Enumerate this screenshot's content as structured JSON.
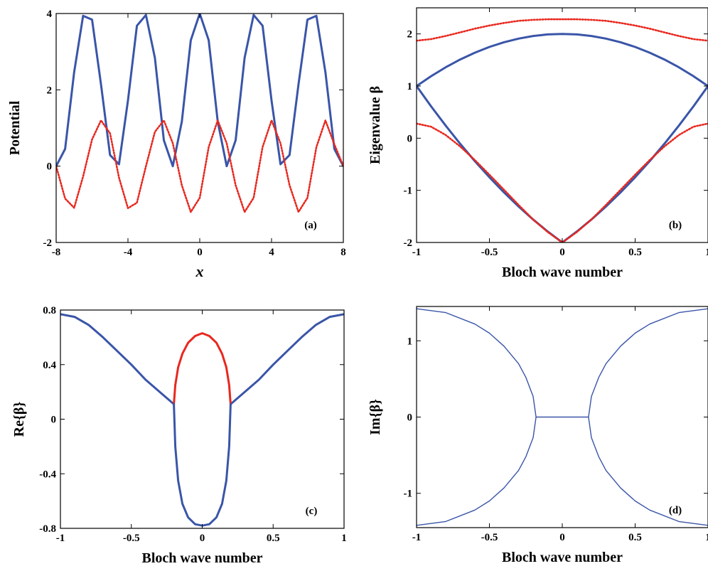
{
  "colors": {
    "blue": "#3a55a8",
    "red": "#e8281e",
    "axis": "#000000"
  },
  "chart_data": [
    {
      "type": "line",
      "panel_tag": "(a)",
      "xlabel": "x",
      "ylabel": "Potential",
      "xlim": [
        -8,
        8
      ],
      "ylim": [
        -2,
        4
      ],
      "xticks": [
        "-8",
        "-4",
        "0",
        "4",
        "8"
      ],
      "yticks": [
        "-2",
        "0",
        "2",
        "4"
      ],
      "grid": false,
      "series": [
        {
          "color": "blue",
          "style": "solid",
          "x": [
            -8,
            -7.5,
            -7,
            -6.5,
            -6,
            -5.5,
            -5,
            -4.5,
            -4,
            -3.5,
            -3,
            -2.5,
            -2,
            -1.5,
            -1,
            -0.5,
            0,
            0.5,
            1,
            1.5,
            2,
            2.5,
            3,
            3.5,
            4,
            4.5,
            5,
            5.5,
            6,
            6.5,
            7,
            7.5,
            8
          ],
          "y": [
            0.0,
            0.45,
            2.46,
            3.94,
            3.84,
            2.14,
            0.29,
            0.05,
            1.72,
            3.68,
            3.96,
            2.84,
            0.68,
            0.0,
            1.17,
            3.3,
            4.0,
            3.3,
            1.17,
            0.0,
            0.68,
            2.84,
            3.96,
            3.68,
            1.72,
            0.05,
            0.29,
            2.14,
            3.84,
            3.94,
            2.46,
            0.45,
            0.0
          ]
        },
        {
          "color": "red",
          "style": "dotted",
          "x": [
            -8,
            -7.5,
            -7,
            -6.5,
            -6,
            -5.5,
            -5,
            -4.5,
            -4,
            -3.5,
            -3,
            -2.5,
            -2,
            -1.5,
            -1,
            -0.5,
            0,
            0.5,
            1,
            1.5,
            2,
            2.5,
            3,
            3.5,
            4,
            4.5,
            5,
            5.5,
            6,
            6.5,
            7,
            7.5,
            8
          ],
          "y": [
            0.0,
            -0.85,
            -1.09,
            -0.27,
            0.7,
            1.2,
            0.86,
            -0.3,
            -1.1,
            -0.96,
            0.0,
            0.9,
            1.2,
            0.6,
            -0.5,
            -1.2,
            -0.83,
            0.5,
            1.2,
            0.6,
            -0.5,
            -1.2,
            -0.83,
            0.5,
            1.2,
            0.6,
            -0.5,
            -1.2,
            -0.83,
            0.5,
            1.2,
            0.57,
            0.0
          ]
        }
      ]
    },
    {
      "type": "line",
      "panel_tag": "(b)",
      "xlabel": "Bloch wave number",
      "ylabel": "Eigenvalue β",
      "xlim": [
        -1,
        1
      ],
      "ylim": [
        -2,
        2.5
      ],
      "xticks": [
        "-1",
        "-0.5",
        "0",
        "0.5",
        "1"
      ],
      "yticks": [
        "-2",
        "-1",
        "0",
        "1",
        "2"
      ],
      "grid": false,
      "series": [
        {
          "color": "blue",
          "style": "solid",
          "x": [
            -1,
            -0.9,
            -0.8,
            -0.7,
            -0.6,
            -0.5,
            -0.4,
            -0.3,
            -0.2,
            -0.1,
            0,
            0.1,
            0.2,
            0.3,
            0.4,
            0.5,
            0.6,
            0.7,
            0.8,
            0.9,
            1
          ],
          "y": [
            1.0,
            1.19,
            1.36,
            1.51,
            1.64,
            1.75,
            1.84,
            1.91,
            1.96,
            1.99,
            2.0,
            1.99,
            1.96,
            1.91,
            1.84,
            1.75,
            1.64,
            1.51,
            1.36,
            1.19,
            1.0
          ]
        },
        {
          "color": "blue",
          "style": "solid",
          "x": [
            -1,
            -0.9,
            -0.8,
            -0.7,
            -0.6,
            -0.5,
            -0.4,
            -0.3,
            -0.2,
            -0.1,
            0,
            0.1,
            0.2,
            0.3,
            0.4,
            0.5,
            0.6,
            0.7,
            0.8,
            0.9,
            1
          ],
          "y": [
            1.0,
            0.61,
            0.24,
            -0.11,
            -0.44,
            -0.75,
            -1.04,
            -1.31,
            -1.56,
            -1.79,
            -2.0,
            -1.79,
            -1.56,
            -1.31,
            -1.04,
            -0.75,
            -0.44,
            -0.11,
            0.24,
            0.61,
            1.0
          ]
        },
        {
          "color": "red",
          "style": "dotted",
          "x": [
            -1,
            -0.9,
            -0.8,
            -0.7,
            -0.6,
            -0.5,
            -0.4,
            -0.3,
            -0.2,
            -0.1,
            0,
            0.1,
            0.2,
            0.3,
            0.4,
            0.5,
            0.6,
            0.7,
            0.8,
            0.9,
            1
          ],
          "y": [
            1.87,
            1.9,
            1.96,
            2.03,
            2.1,
            2.16,
            2.21,
            2.25,
            2.27,
            2.28,
            2.28,
            2.28,
            2.27,
            2.25,
            2.21,
            2.16,
            2.1,
            2.03,
            1.96,
            1.9,
            1.87
          ]
        },
        {
          "color": "red",
          "style": "dotted",
          "x": [
            -1,
            -0.9,
            -0.8,
            -0.7,
            -0.6,
            -0.5,
            -0.4,
            -0.3,
            -0.2,
            -0.1,
            0,
            0.1,
            0.2,
            0.3,
            0.4,
            0.5,
            0.6,
            0.7,
            0.8,
            0.9,
            1
          ],
          "y": [
            0.28,
            0.22,
            0.06,
            -0.16,
            -0.42,
            -0.7,
            -0.99,
            -1.28,
            -1.56,
            -1.8,
            -2.0,
            -1.8,
            -1.56,
            -1.28,
            -0.99,
            -0.7,
            -0.42,
            -0.16,
            0.06,
            0.22,
            0.28
          ]
        }
      ]
    },
    {
      "type": "line",
      "panel_tag": "(c)",
      "xlabel": "Bloch wave number",
      "ylabel": "Re{β}",
      "xlim": [
        -1,
        1
      ],
      "ylim": [
        -0.8,
        0.8
      ],
      "xticks": [
        "-1",
        "-0.5",
        "0",
        "0.5",
        "1"
      ],
      "yticks": [
        "-0.8",
        "-0.4",
        "0",
        "0.4",
        "0.8"
      ],
      "grid": false,
      "series": [
        {
          "color": "blue",
          "style": "solid",
          "x": [
            -1,
            -0.9,
            -0.8,
            -0.7,
            -0.6,
            -0.5,
            -0.4,
            -0.3,
            -0.2
          ],
          "y": [
            0.77,
            0.75,
            0.69,
            0.6,
            0.5,
            0.4,
            0.29,
            0.2,
            0.11
          ]
        },
        {
          "color": "blue",
          "style": "solid",
          "x": [
            0.2,
            0.3,
            0.4,
            0.5,
            0.6,
            0.7,
            0.8,
            0.9,
            1
          ],
          "y": [
            0.11,
            0.2,
            0.29,
            0.4,
            0.5,
            0.6,
            0.69,
            0.75,
            0.77
          ]
        },
        {
          "color": "red",
          "style": "solid",
          "x": [
            -0.2,
            -0.19,
            -0.17,
            -0.14,
            -0.1,
            -0.05,
            0,
            0.05,
            0.1,
            0.14,
            0.17,
            0.19,
            0.2
          ],
          "y": [
            0.11,
            0.25,
            0.38,
            0.48,
            0.56,
            0.61,
            0.63,
            0.61,
            0.56,
            0.48,
            0.38,
            0.25,
            0.11
          ]
        },
        {
          "color": "blue",
          "style": "solid",
          "x": [
            -0.2,
            -0.19,
            -0.17,
            -0.14,
            -0.1,
            -0.05,
            0,
            0.05,
            0.1,
            0.14,
            0.17,
            0.19,
            0.2
          ],
          "y": [
            0.11,
            -0.2,
            -0.45,
            -0.62,
            -0.72,
            -0.77,
            -0.78,
            -0.77,
            -0.72,
            -0.62,
            -0.45,
            -0.2,
            0.11
          ]
        }
      ]
    },
    {
      "type": "line",
      "panel_tag": "(d)",
      "xlabel": "Bloch wave number",
      "ylabel": "Im{β}",
      "xlim": [
        -1,
        1
      ],
      "ylim": [
        -1.45,
        1.45
      ],
      "xticks": [
        "-1",
        "-0.5",
        "0",
        "0.5",
        "1"
      ],
      "yticks": [
        "-1",
        "0",
        "1"
      ],
      "grid": false,
      "series": [
        {
          "color": "blue",
          "style": "thin",
          "x": [
            -1,
            -0.8,
            -0.6,
            -0.5,
            -0.4,
            -0.3,
            -0.25,
            -0.2,
            -0.18
          ],
          "y": [
            1.42,
            1.37,
            1.22,
            1.1,
            0.93,
            0.7,
            0.52,
            0.27,
            0.0
          ]
        },
        {
          "color": "blue",
          "style": "thin",
          "x": [
            -1,
            -0.8,
            -0.6,
            -0.5,
            -0.4,
            -0.3,
            -0.25,
            -0.2,
            -0.18
          ],
          "y": [
            -1.42,
            -1.37,
            -1.22,
            -1.1,
            -0.93,
            -0.7,
            -0.52,
            -0.27,
            0.0
          ]
        },
        {
          "color": "blue",
          "style": "thin",
          "x": [
            -0.18,
            0.18
          ],
          "y": [
            0.0,
            0.0
          ]
        },
        {
          "color": "blue",
          "style": "thin",
          "x": [
            0.18,
            0.2,
            0.25,
            0.3,
            0.4,
            0.5,
            0.6,
            0.8,
            1
          ],
          "y": [
            0.0,
            0.27,
            0.52,
            0.7,
            0.93,
            1.1,
            1.22,
            1.37,
            1.42
          ]
        },
        {
          "color": "blue",
          "style": "thin",
          "x": [
            0.18,
            0.2,
            0.25,
            0.3,
            0.4,
            0.5,
            0.6,
            0.8,
            1
          ],
          "y": [
            0.0,
            -0.27,
            -0.52,
            -0.7,
            -0.93,
            -1.1,
            -1.22,
            -1.37,
            -1.42
          ]
        }
      ]
    }
  ]
}
